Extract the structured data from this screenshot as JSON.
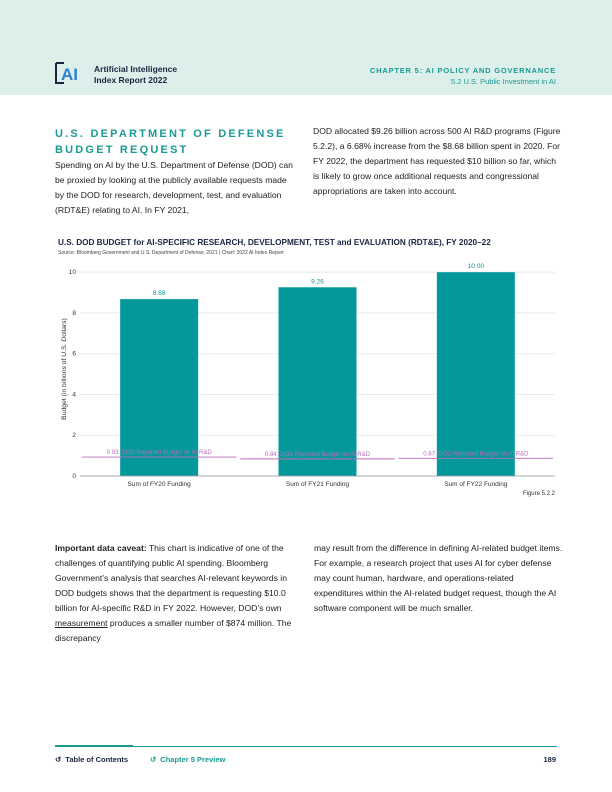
{
  "header": {
    "logo_text": "AI",
    "report_title_line1": "Artificial Intelligence",
    "report_title_line2": "Index Report 2022",
    "chapter": "CHAPTER 5: AI POLICY AND GOVERNANCE",
    "section": "5.2 U.S. Public Investment in AI"
  },
  "section": {
    "title_line1": "U.S. DEPARTMENT OF DEFENSE",
    "title_line2": "BUDGET REQUEST",
    "left_text": "Spending on AI by the U.S. Department of Defense (DOD) can be proxied by looking at the publicly available requests made by the DOD for research, development, test, and evaluation (RDT&E) relating to AI. In FY 2021,",
    "right_text": "DOD allocated $9.26 billion across 500 AI R&D programs (Figure 5.2.2), a 6.68% increase from the $8.68 billion spent in 2020. For FY 2022, the department has requested $10 billion so far, which is likely to grow once additional requests and congressional appropriations are taken into account."
  },
  "chart_data": {
    "type": "bar",
    "title": "U.S. DOD BUDGET for AI-SPECIFIC RESEARCH, DEVELOPMENT, TEST and EVALUATION (RDT&E), FY 2020–22",
    "source": "Source: Bloomberg Government and U.S. Department of Defense, 2021 | Chart: 2022 AI Index Report",
    "ylabel": "Budget (in billions of U.S. Dollars)",
    "ylim": [
      0,
      10.5
    ],
    "yticks": [
      0,
      2,
      4,
      6,
      8,
      10
    ],
    "grid": true,
    "categories": [
      "Sum of FY20 Funding",
      "Sum of FY21 Funding",
      "Sum of FY22 Funding"
    ],
    "values": [
      8.68,
      9.26,
      10.0
    ],
    "value_labels": [
      "8.68",
      "9.26",
      "10.00"
    ],
    "reference_values": [
      0.93,
      0.84,
      0.87
    ],
    "reference_labels": [
      "0.93: DOD Reported Budget on AI R&D",
      "0.84: DOD Reported Budget on AI R&D",
      "0.87: DOD Reported Budget on AI R&D"
    ],
    "bar_color": "#05989a",
    "reference_color": "#b86bb8",
    "figure_label": "Figure 5.2.2"
  },
  "caveat": {
    "bold": "Important data caveat:",
    "left_rest": " This chart is indicative of one of the challenges of quantifying public AI spending. Bloomberg Government’s analysis that searches AI-relevant keywords in DOD budgets shows that the department is requesting $10.0 billion for AI-specific R&D in FY 2022. However, DOD’s own ",
    "link": "measurement",
    "left_end": " produces a smaller number of $874 million. The discrepancy",
    "right_text": "may result from the difference in defining AI-related budget items. For example, a research project that uses AI for cyber defense may count human, hardware, and operations-related expenditures within the AI-related budget request, though the AI software component will be much smaller."
  },
  "footer": {
    "toc": "Table of Contents",
    "preview": "Chapter 5 Preview",
    "page": "189"
  }
}
